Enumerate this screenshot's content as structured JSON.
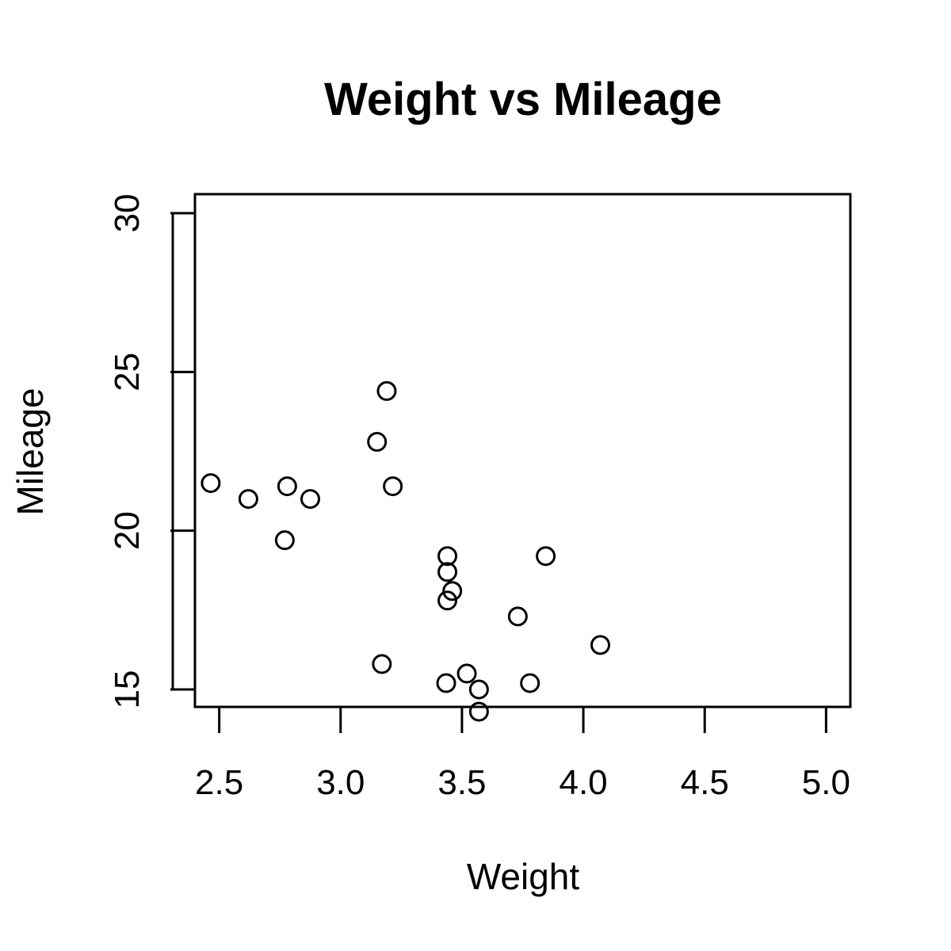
{
  "chart_data": {
    "type": "scatter",
    "title": "Weight vs Mileage",
    "xlabel": "Weight",
    "ylabel": "Mileage",
    "xlim": [
      2.4,
      5.1
    ],
    "ylim": [
      14.45,
      30.6
    ],
    "xticks": [
      "2.5",
      "3.0",
      "3.5",
      "4.0",
      "4.5",
      "5.0"
    ],
    "yticks": [
      "15",
      "20",
      "25",
      "30"
    ],
    "grid": false,
    "legend": "none",
    "marker": "open-circle",
    "point_color": "#000000",
    "series": [
      {
        "x": [
          2.465,
          2.62,
          2.77,
          2.78,
          2.875,
          3.15,
          3.17,
          3.19,
          3.215,
          3.435,
          3.44,
          3.44,
          3.44,
          3.46,
          3.52,
          3.57,
          3.57,
          3.73,
          3.78,
          3.845,
          4.07
        ],
        "y": [
          21.5,
          21.0,
          19.7,
          21.4,
          21.0,
          22.8,
          15.8,
          24.4,
          21.4,
          15.2,
          19.2,
          18.7,
          17.8,
          18.1,
          15.5,
          15.0,
          14.3,
          17.3,
          15.2,
          19.2,
          16.4
        ]
      }
    ]
  }
}
